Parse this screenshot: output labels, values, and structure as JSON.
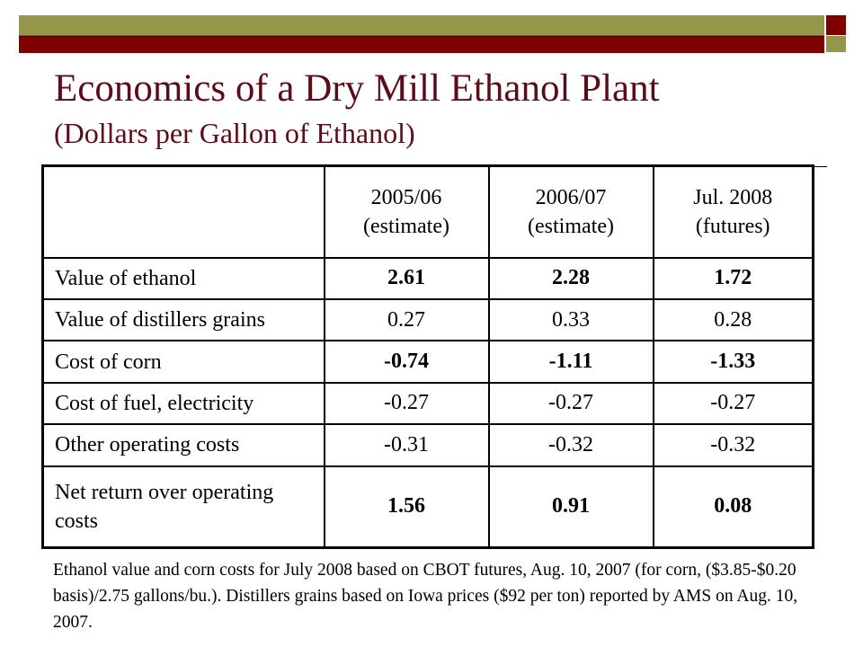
{
  "title": "Economics of a Dry Mill Ethanol Plant",
  "subtitle": "(Dollars per Gallon of Ethanol)",
  "table": {
    "headers": [
      {
        "line1": "2005/06",
        "line2": "(estimate)"
      },
      {
        "line1": "2006/07",
        "line2": "(estimate)"
      },
      {
        "line1": "Jul. 2008",
        "line2": "(futures)"
      }
    ],
    "rows": [
      {
        "label": "Value of ethanol",
        "values": [
          "2.61",
          "2.28",
          "1.72"
        ],
        "bold": true
      },
      {
        "label": "Value of distillers grains",
        "values": [
          "0.27",
          "0.33",
          "0.28"
        ],
        "bold": false
      },
      {
        "label": "Cost of corn",
        "values": [
          "-0.74",
          "-1.11",
          "-1.33"
        ],
        "bold": true
      },
      {
        "label": "Cost of fuel, electricity",
        "values": [
          "-0.27",
          "-0.27",
          "-0.27"
        ],
        "bold": false
      },
      {
        "label": "Other operating costs",
        "values": [
          "-0.31",
          "-0.32",
          "-0.32"
        ],
        "bold": false
      },
      {
        "label": "Net return over operating costs",
        "values": [
          "1.56",
          "0.91",
          "0.08"
        ],
        "bold": true
      }
    ]
  },
  "footnote": "Ethanol value and corn costs for July 2008 based on CBOT futures, Aug. 10, 2007 (for corn, ($3.85-$0.20 basis)/2.75 gallons/bu.). Distillers grains based on Iowa prices ($92 per ton) reported by AMS on Aug. 10, 2007.",
  "colors": {
    "title": "#5c0b18",
    "bar_olive": "#94964a",
    "bar_maroon": "#800000"
  }
}
